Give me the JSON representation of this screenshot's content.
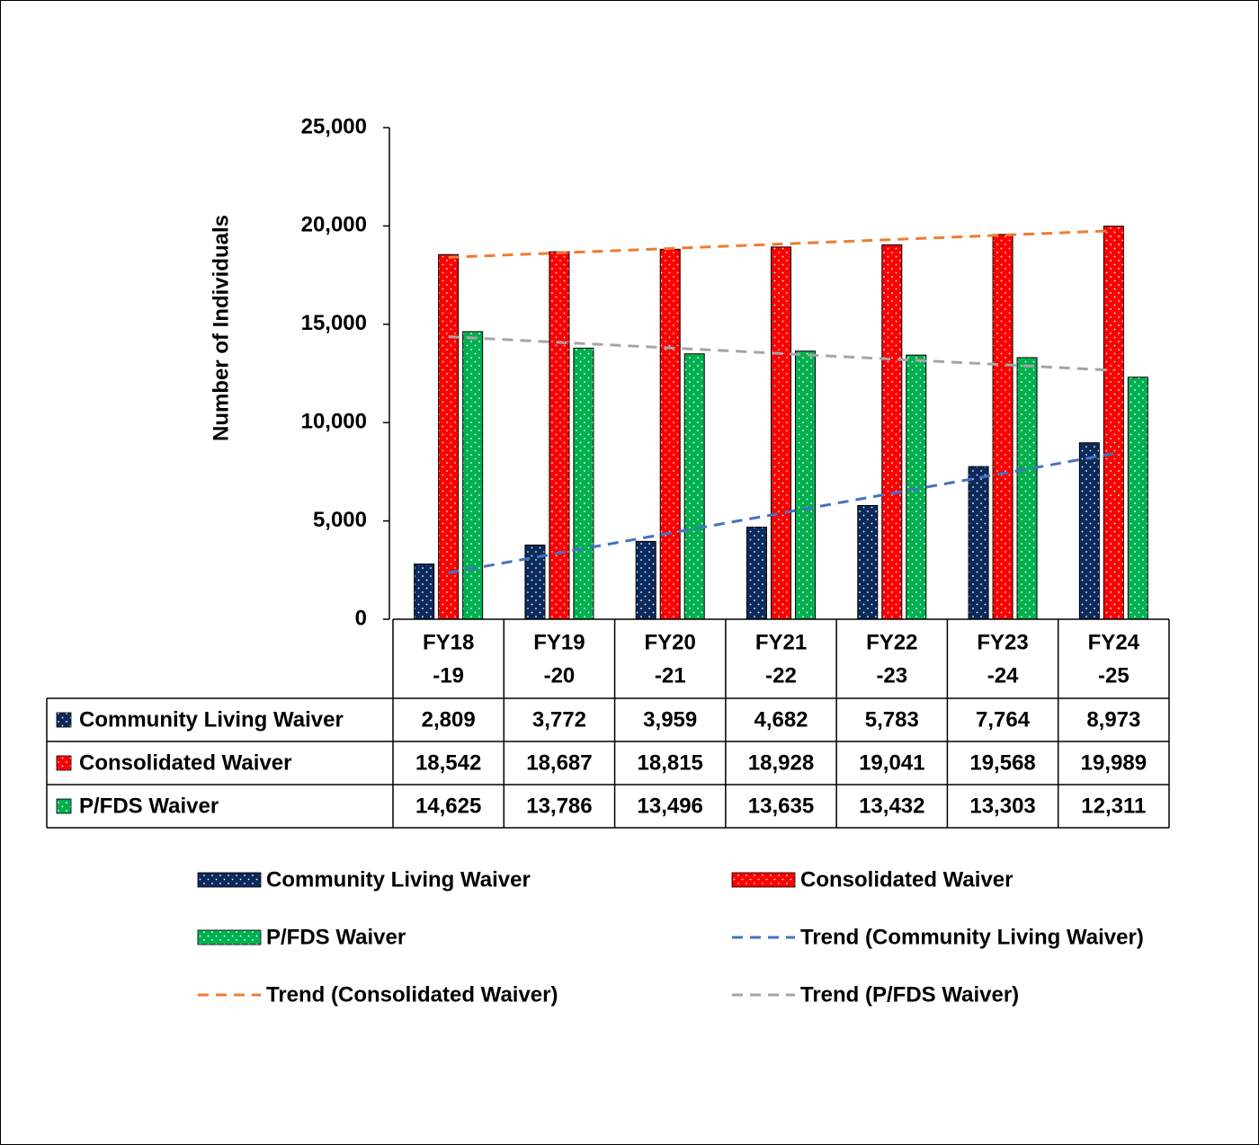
{
  "chart_data": {
    "type": "bar",
    "ylabel": "Number of Individuals",
    "categories": [
      [
        "FY18",
        "-19"
      ],
      [
        "FY19",
        "-20"
      ],
      [
        "FY20",
        "-21"
      ],
      [
        "FY21",
        "-22"
      ],
      [
        "FY22",
        "-23"
      ],
      [
        "FY23",
        "-24"
      ],
      [
        "FY24",
        "-25"
      ]
    ],
    "ylim": [
      0,
      25000
    ],
    "yticks": [
      0,
      {
        "value": 5000,
        "label": "5,000"
      },
      {
        "value": 10000,
        "label": "10,000"
      },
      {
        "value": 15000,
        "label": "15,000"
      },
      {
        "value": 20000,
        "label": "20,000"
      },
      {
        "value": 25000,
        "label": "25,000"
      }
    ],
    "grid": false,
    "series": [
      {
        "name": "Community Living Waiver",
        "color": "#0b2a5c",
        "values": [
          2809,
          3772,
          3959,
          4682,
          5783,
          7764,
          8973
        ],
        "value_labels": [
          "2,809",
          "3,772",
          "3,959",
          "4,682",
          "5,783",
          "7,764",
          "8,973"
        ],
        "trend": {
          "name": "Trend (Community Living Waiver)",
          "color": "#4472c4"
        }
      },
      {
        "name": "Consolidated Waiver",
        "color": "#ff0000",
        "values": [
          18542,
          18687,
          18815,
          18928,
          19041,
          19568,
          19989
        ],
        "value_labels": [
          "18,542",
          "18,687",
          "18,815",
          "18,928",
          "19,041",
          "19,568",
          "19,989"
        ],
        "trend": {
          "name": "Trend (Consolidated Waiver)",
          "color": "#ed7d31"
        }
      },
      {
        "name": "P/FDS Waiver",
        "color": "#00b050",
        "values": [
          14625,
          13786,
          13496,
          13635,
          13432,
          13303,
          12311
        ],
        "value_labels": [
          "14,625",
          "13,786",
          "13,496",
          "13,635",
          "13,432",
          "13,303",
          "12,311"
        ],
        "trend": {
          "name": "Trend (P/FDS Waiver)",
          "color": "#a5a5a5"
        }
      }
    ]
  }
}
